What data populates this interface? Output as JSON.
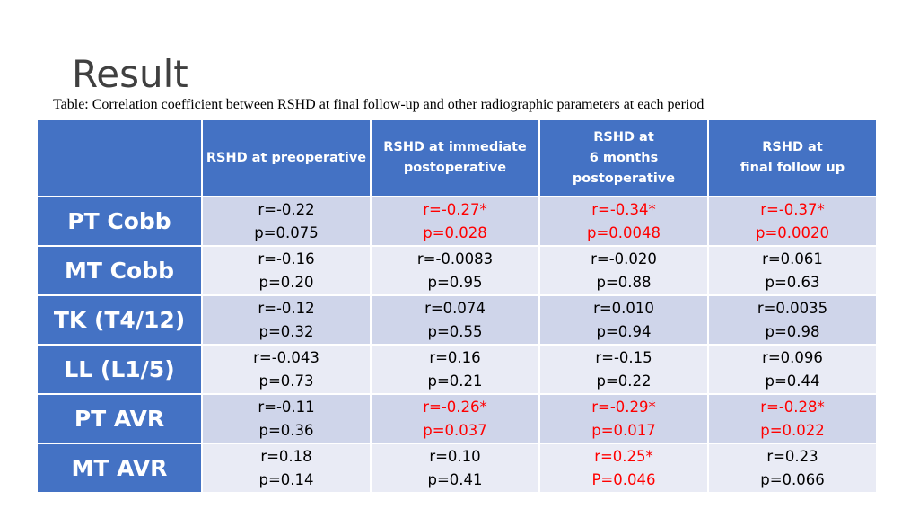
{
  "slide": {
    "title": "Result",
    "caption": "Table: Correlation coefficient between RSHD at final follow-up and other radiographic parameters at each period"
  },
  "table": {
    "columns": [
      {
        "lines": [
          "RSHD at preoperative"
        ]
      },
      {
        "lines": [
          "RSHD at immediate",
          "postoperative"
        ]
      },
      {
        "lines": [
          "RSHD at",
          "6 months",
          "postoperative"
        ]
      },
      {
        "lines": [
          "RSHD at",
          "final follow up"
        ]
      }
    ],
    "rows": [
      {
        "label": "PT Cobb",
        "cells": [
          {
            "r": "r=-0.22",
            "p": "p=0.075",
            "significant": false
          },
          {
            "r": "r=-0.27*",
            "p": "p=0.028",
            "significant": true
          },
          {
            "r": "r=-0.34*",
            "p": "p=0.0048",
            "significant": true
          },
          {
            "r": "r=-0.37*",
            "p": "p=0.0020",
            "significant": true
          }
        ]
      },
      {
        "label": "MT Cobb",
        "cells": [
          {
            "r": "r=-0.16",
            "p": "p=0.20",
            "significant": false
          },
          {
            "r": "r=-0.0083",
            "p": "p=0.95",
            "significant": false
          },
          {
            "r": "r=-0.020",
            "p": "p=0.88",
            "significant": false
          },
          {
            "r": "r=0.061",
            "p": "p=0.63",
            "significant": false
          }
        ]
      },
      {
        "label": "TK (T4/12)",
        "cells": [
          {
            "r": "r=-0.12",
            "p": "p=0.32",
            "significant": false
          },
          {
            "r": "r=0.074",
            "p": "p=0.55",
            "significant": false
          },
          {
            "r": "r=0.010",
            "p": "p=0.94",
            "significant": false
          },
          {
            "r": "r=0.0035",
            "p": "p=0.98",
            "significant": false
          }
        ]
      },
      {
        "label": "LL (L1/5)",
        "cells": [
          {
            "r": "r=-0.043",
            "p": "p=0.73",
            "significant": false
          },
          {
            "r": "r=0.16",
            "p": "p=0.21",
            "significant": false
          },
          {
            "r": "r=-0.15",
            "p": "p=0.22",
            "significant": false
          },
          {
            "r": "r=0.096",
            "p": "p=0.44",
            "significant": false
          }
        ]
      },
      {
        "label": "PT AVR",
        "cells": [
          {
            "r": "r=-0.11",
            "p": "p=0.36",
            "significant": false
          },
          {
            "r": "r=-0.26*",
            "p": "p=0.037",
            "significant": true
          },
          {
            "r": "r=-0.29*",
            "p": "p=0.017",
            "significant": true
          },
          {
            "r": "r=-0.28*",
            "p": "p=0.022",
            "significant": true
          }
        ]
      },
      {
        "label": "MT AVR",
        "cells": [
          {
            "r": "r=0.18",
            "p": "p=0.14",
            "significant": false
          },
          {
            "r": "r=0.10",
            "p": "p=0.41",
            "significant": false
          },
          {
            "r": "r=0.25*",
            "p": "P=0.046",
            "significant": true
          },
          {
            "r": "r=0.23",
            "p": "p=0.066",
            "significant": false
          }
        ]
      }
    ]
  },
  "colors": {
    "header_bg": "#4472C4",
    "row_dark": "#CFD5EA",
    "row_light": "#E9EBF5",
    "significant_text": "#FF0000",
    "title_text": "#404040"
  }
}
